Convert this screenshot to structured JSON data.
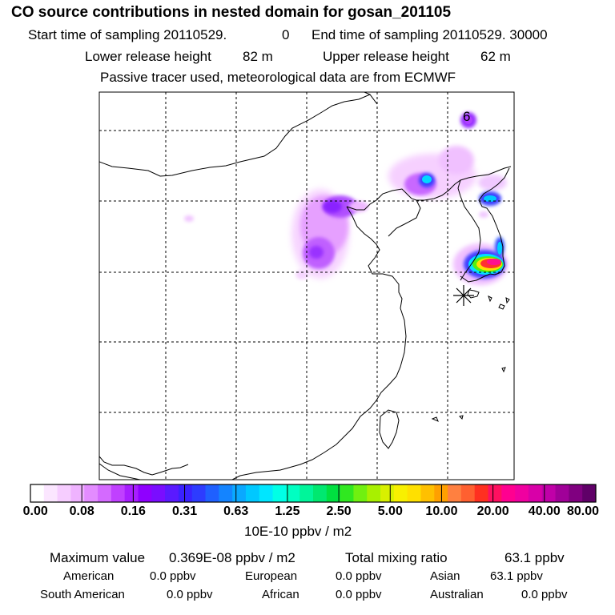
{
  "header": {
    "title": "CO  source contributions in nested domain for gosan_201105",
    "start_label": "Start time of sampling 20110529.",
    "start_value": "0",
    "end_label": "End time of sampling 20110529. 30000",
    "lower_label": "Lower release height",
    "lower_value": "82 m",
    "upper_label": "Upper release height",
    "upper_value": "62 m",
    "tracer_note": "Passive tracer used, meteorological data are from ECMWF"
  },
  "map": {
    "annotation": "6",
    "receptor_marker": "asterisk"
  },
  "chart_data": {
    "type": "heatmap",
    "colorbar_unit": "10E-10 ppbv / m2",
    "colorbar_ticks": [
      "0.00",
      "0.08",
      "0.16",
      "0.31",
      "0.63",
      "1.25",
      "2.50",
      "5.00",
      "10.00",
      "20.00",
      "40.00",
      "80.00"
    ],
    "colors": [
      "#ffffff",
      "#fbe6ff",
      "#f6cdff",
      "#efb3ff",
      "#e38cff",
      "#d46aff",
      "#c040ff",
      "#a81eff",
      "#8f00ff",
      "#7a0dff",
      "#5a1aff",
      "#3a22ff",
      "#2d3cff",
      "#1f60ff",
      "#1484ff",
      "#0aa8ff",
      "#00c8ff",
      "#00e6ff",
      "#00ffe6",
      "#00ffc2",
      "#00f59a",
      "#00e870",
      "#00e040",
      "#30e820",
      "#70f010",
      "#a8f000",
      "#d8f000",
      "#f8f000",
      "#ffe000",
      "#ffc000",
      "#ffa000",
      "#ff8040",
      "#ff6030",
      "#ff3020",
      "#ff1060",
      "#ff0090",
      "#f000a0",
      "#d800a8",
      "#c000a8",
      "#a00098",
      "#800080",
      "#600068"
    ],
    "grid": true
  },
  "stats": {
    "max_label": "Maximum value",
    "max_value": "0.369E-08 ppbv / m2",
    "total_label": "Total mixing ratio",
    "total_value": "63.1 ppbv",
    "regions": [
      {
        "name": "American",
        "value": "0.0 ppbv"
      },
      {
        "name": "European",
        "value": "0.0 ppbv"
      },
      {
        "name": "Asian",
        "value": "63.1 ppbv"
      },
      {
        "name": "South American",
        "value": "0.0 ppbv"
      },
      {
        "name": "African",
        "value": "0.0 ppbv"
      },
      {
        "name": "Australian",
        "value": "0.0 ppbv"
      }
    ]
  }
}
